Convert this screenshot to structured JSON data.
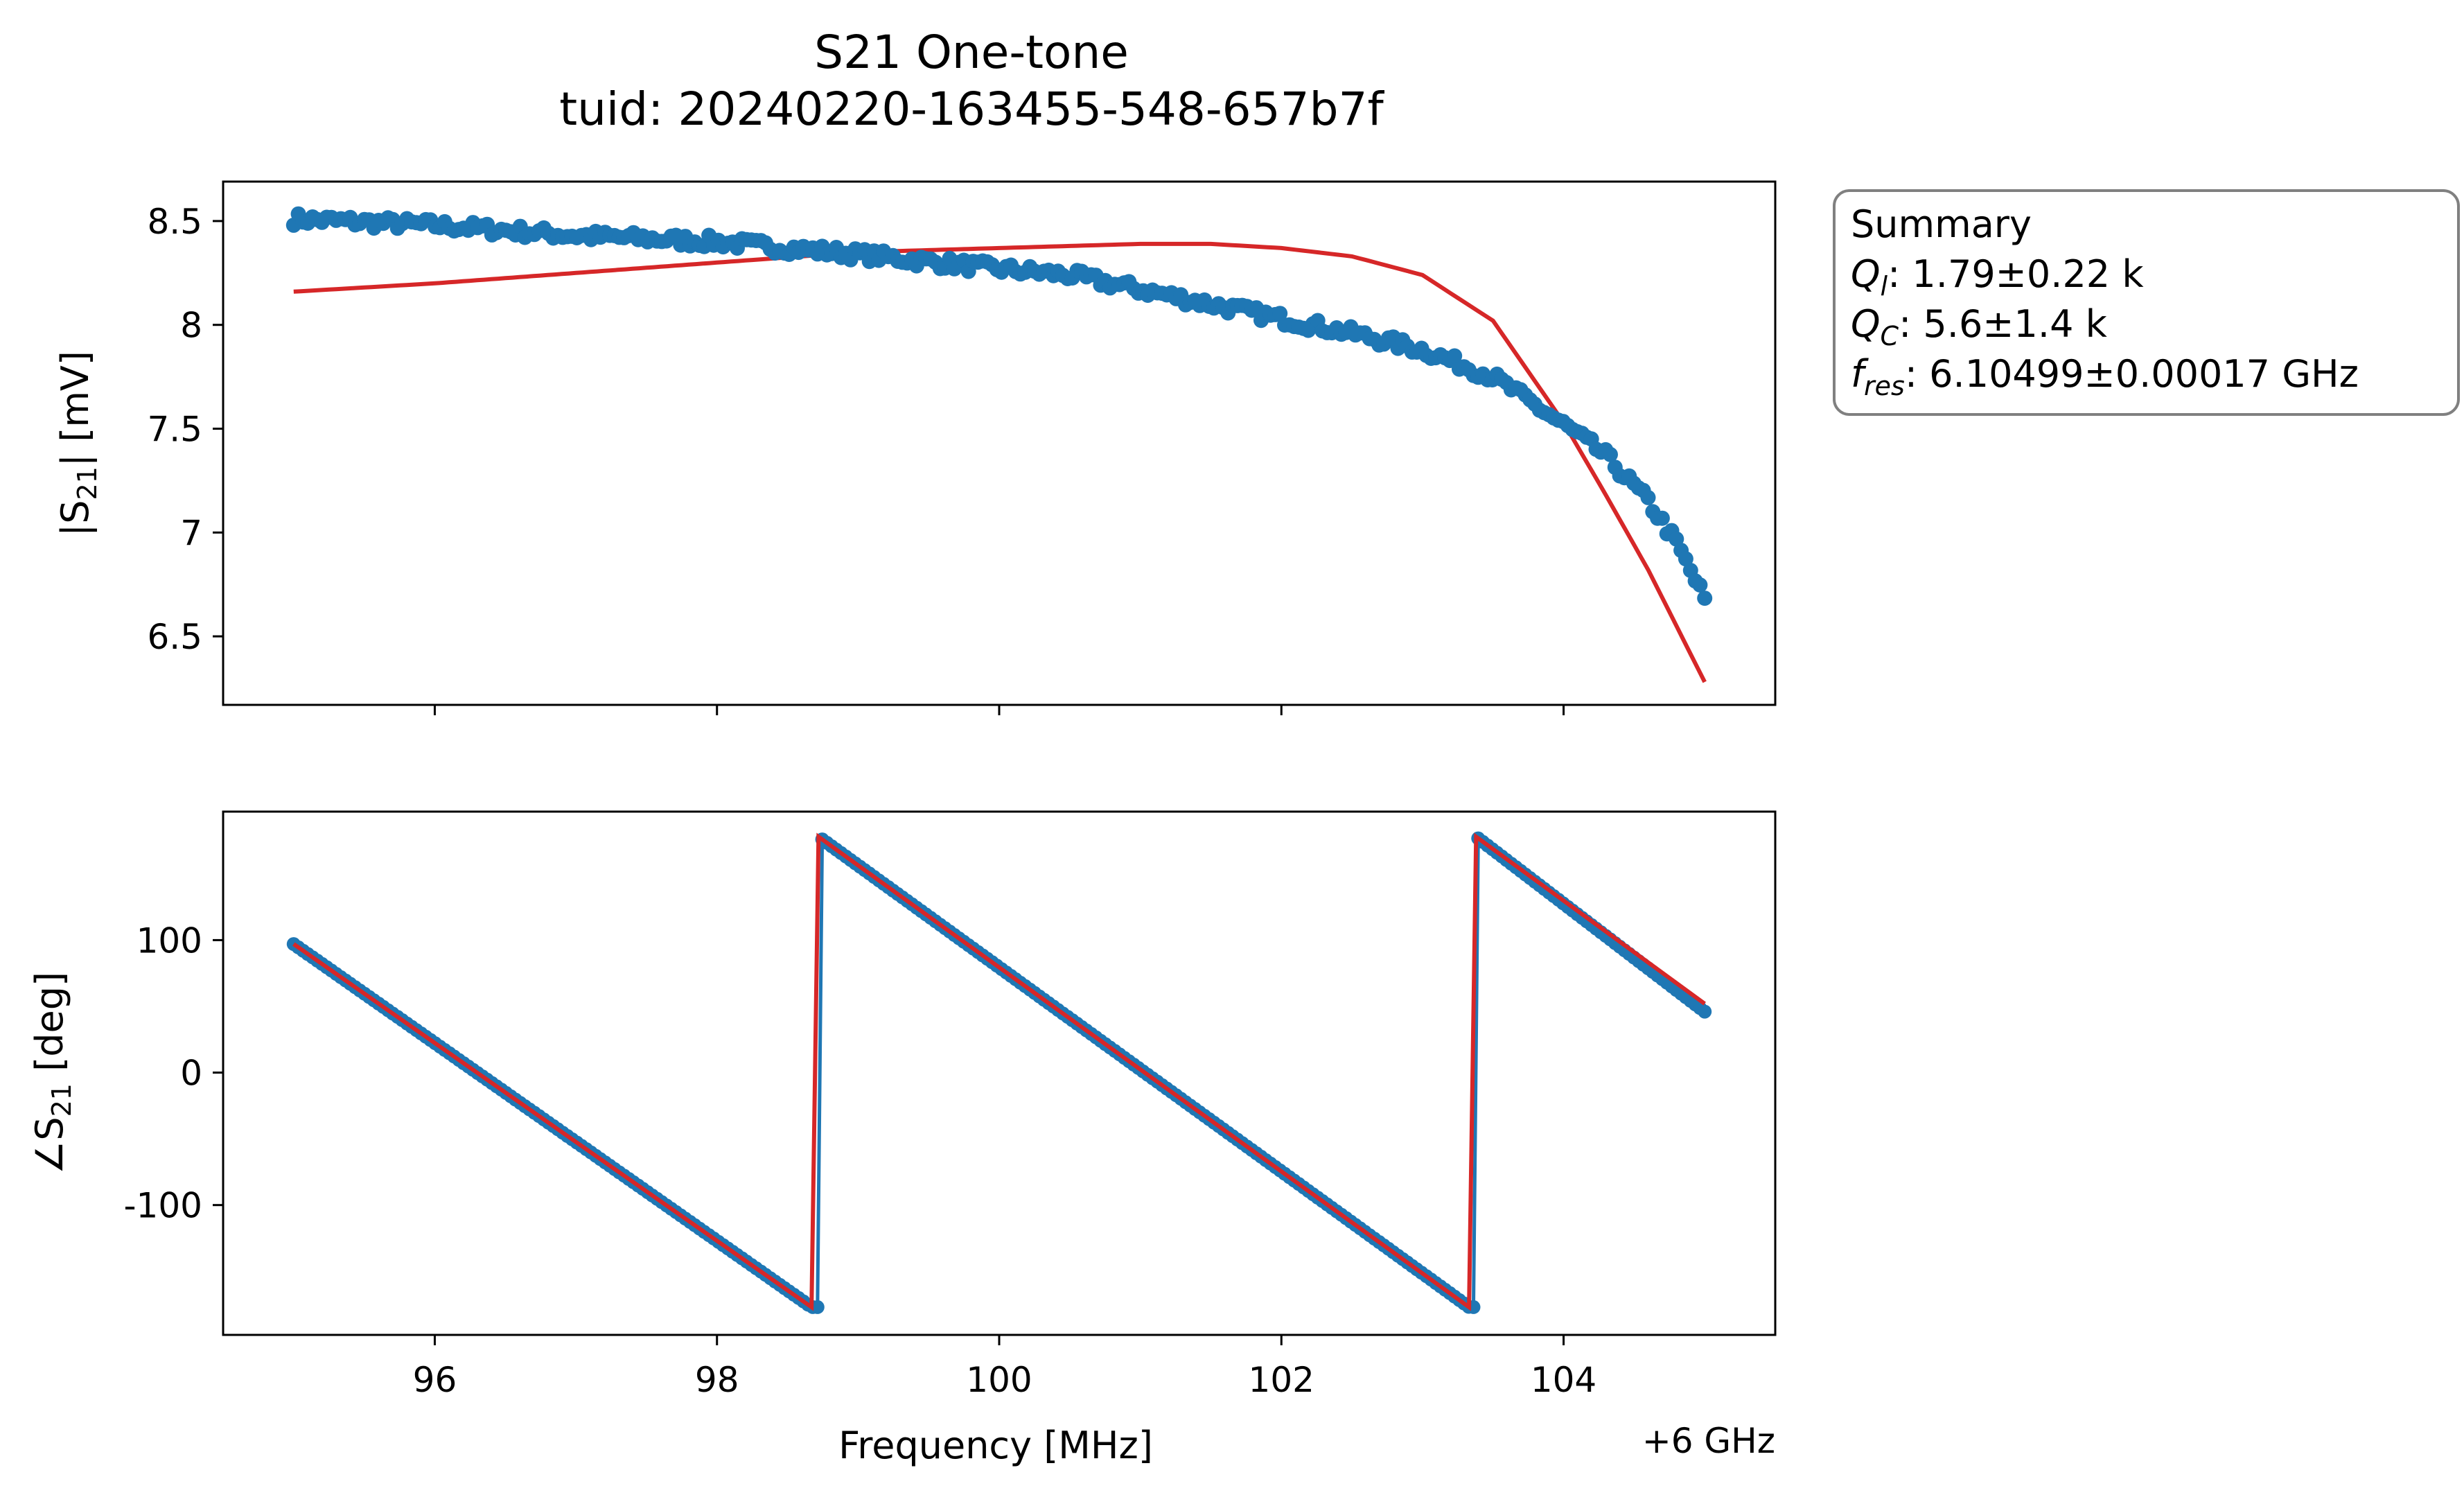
{
  "title": "S21 One-tone",
  "subtitle": "tuid: 20240220-163455-548-657b7f",
  "summary": {
    "heading": "Summary",
    "ql_label": "Q",
    "ql_sub": "l",
    "ql_value": ": 1.79±0.22 k",
    "qc_label": "Q",
    "qc_sub": "C",
    "qc_value": ": 5.6±1.4 k",
    "fres_label": "f",
    "fres_sub": "res",
    "fres_value": ": 6.10499±0.00017 GHz"
  },
  "x_axis": {
    "label": "Frequency [MHz]",
    "offset_label": "+6 GHz",
    "ticks": [
      "96",
      "98",
      "100",
      "102",
      "104"
    ]
  },
  "chart_data": [
    {
      "type": "scatter",
      "ylabel_main": "|S",
      "ylabel_sub": "21",
      "ylabel_tail": "| [mV]",
      "xlim": [
        94.5,
        105.5
      ],
      "ylim": [
        6.17,
        8.69
      ],
      "yticks": [
        6.5,
        7,
        7.5,
        8,
        8.5
      ],
      "ytick_labels": [
        "6.5",
        "7",
        "7.5",
        "8",
        "8.5"
      ],
      "data_x_start": 95.0,
      "data_x_end": 105.0,
      "data_points": 300,
      "data_color": "#1f77b4",
      "fit_color": "#d62728",
      "data_keypoints": [
        [
          95.0,
          8.51
        ],
        [
          96.0,
          8.48
        ],
        [
          97.0,
          8.43
        ],
        [
          98.0,
          8.4
        ],
        [
          99.0,
          8.34
        ],
        [
          100.0,
          8.27
        ],
        [
          100.5,
          8.24
        ],
        [
          101.0,
          8.17
        ],
        [
          101.5,
          8.1
        ],
        [
          102.0,
          8.03
        ],
        [
          102.5,
          7.96
        ],
        [
          103.0,
          7.88
        ],
        [
          103.5,
          7.75
        ],
        [
          104.0,
          7.52
        ],
        [
          104.3,
          7.37
        ],
        [
          104.6,
          7.15
        ],
        [
          104.8,
          6.95
        ],
        [
          105.0,
          6.68
        ]
      ],
      "fit_keypoints": [
        [
          95.0,
          8.16
        ],
        [
          96.0,
          8.2
        ],
        [
          97.0,
          8.25
        ],
        [
          98.0,
          8.3
        ],
        [
          99.0,
          8.35
        ],
        [
          100.0,
          8.37
        ],
        [
          100.5,
          8.38
        ],
        [
          101.0,
          8.39
        ],
        [
          101.5,
          8.39
        ],
        [
          102.0,
          8.37
        ],
        [
          102.5,
          8.33
        ],
        [
          103.0,
          8.24
        ],
        [
          103.5,
          8.02
        ],
        [
          104.0,
          7.53
        ],
        [
          104.3,
          7.18
        ],
        [
          104.6,
          6.82
        ],
        [
          104.8,
          6.55
        ],
        [
          105.0,
          6.28
        ]
      ]
    },
    {
      "type": "scatter",
      "ylabel_main": "∠S",
      "ylabel_sub": "21",
      "ylabel_tail": " [deg]",
      "xlim": [
        94.5,
        105.5
      ],
      "ylim": [
        -198,
        197
      ],
      "yticks": [
        -100,
        0,
        100
      ],
      "ytick_labels": [
        "-100",
        "0",
        "100"
      ],
      "data_x_start": 95.0,
      "data_x_end": 105.0,
      "data_points": 300,
      "data_color": "#1f77b4",
      "fit_color": "#d62728",
      "segments": [
        {
          "x": [
            95.0,
            98.67
          ],
          "y": [
            97,
            -177
          ]
        },
        {
          "x": [
            98.72,
            103.33
          ],
          "y": [
            178,
            -177
          ]
        },
        {
          "x": [
            103.38,
            105.0
          ],
          "y": [
            178,
            46
          ]
        }
      ],
      "fit_segments": [
        {
          "x": [
            95.0,
            98.67
          ],
          "y": [
            97,
            -177
          ]
        },
        {
          "x": [
            98.72,
            103.33
          ],
          "y": [
            178,
            -177
          ]
        },
        {
          "x": [
            103.38,
            105.0
          ],
          "y": [
            178,
            52
          ]
        }
      ]
    }
  ]
}
